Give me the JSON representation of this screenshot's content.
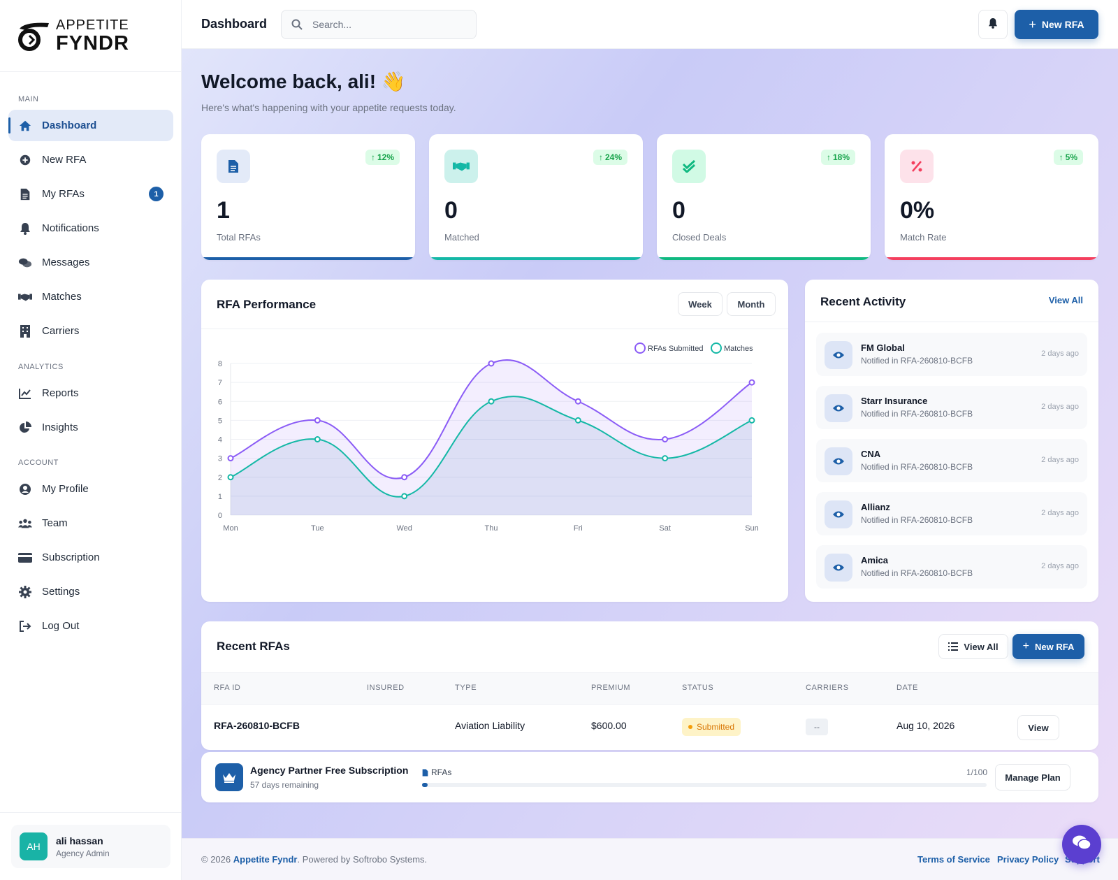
{
  "brand": {
    "line1": "APPETITE",
    "line2": "FYNDR"
  },
  "sidebar": {
    "sections": {
      "main": "MAIN",
      "analytics": "ANALYTICS",
      "account": "ACCOUNT"
    },
    "items": [
      {
        "label": "Dashboard",
        "icon": "home-icon"
      },
      {
        "label": "New RFA",
        "icon": "plus-circle-icon"
      },
      {
        "label": "My RFAs",
        "icon": "file-icon",
        "badge": "1"
      },
      {
        "label": "Notifications",
        "icon": "bell-icon"
      },
      {
        "label": "Messages",
        "icon": "comments-icon"
      },
      {
        "label": "Matches",
        "icon": "handshake-icon"
      },
      {
        "label": "Carriers",
        "icon": "building-icon"
      },
      {
        "label": "Reports",
        "icon": "line-chart-icon"
      },
      {
        "label": "Insights",
        "icon": "pie-chart-icon"
      },
      {
        "label": "My Profile",
        "icon": "user-circle-icon"
      },
      {
        "label": "Team",
        "icon": "users-icon"
      },
      {
        "label": "Subscription",
        "icon": "credit-card-icon"
      },
      {
        "label": "Settings",
        "icon": "gear-icon"
      },
      {
        "label": "Log Out",
        "icon": "logout-icon"
      }
    ],
    "user": {
      "initials": "AH",
      "name": "ali hassan",
      "role": "Agency Admin"
    }
  },
  "topbar": {
    "title": "Dashboard",
    "search_placeholder": "Search...",
    "new_rfa": "New RFA"
  },
  "welcome": {
    "title": "Welcome back, ali! 👋",
    "subtitle": "Here's what's happening with your appetite requests today."
  },
  "stats": [
    {
      "value": "1",
      "label": "Total RFAs",
      "trend": "12%",
      "color": "#1d5fa8"
    },
    {
      "value": "0",
      "label": "Matched",
      "trend": "24%",
      "color": "#14b8a6"
    },
    {
      "value": "0",
      "label": "Closed Deals",
      "trend": "18%",
      "color": "#10b981"
    },
    {
      "value": "0%",
      "label": "Match Rate",
      "trend": "5%",
      "color": "#f43f5e"
    }
  ],
  "performance": {
    "title": "RFA Performance",
    "week": "Week",
    "month": "Month"
  },
  "chart_data": {
    "type": "line",
    "categories": [
      "Mon",
      "Tue",
      "Wed",
      "Thu",
      "Fri",
      "Sat",
      "Sun"
    ],
    "series": [
      {
        "name": "RFAs Submitted",
        "values": [
          3,
          5,
          2,
          8,
          6,
          4,
          7
        ],
        "color": "#8b5cf6"
      },
      {
        "name": "Matches",
        "values": [
          2,
          4,
          1,
          6,
          5,
          3,
          5
        ],
        "color": "#14b8a6"
      }
    ],
    "ylim": [
      0,
      8
    ],
    "yticks": [
      "0",
      "1",
      "2",
      "3",
      "4",
      "5",
      "6",
      "7",
      "8"
    ],
    "legend": "top-right",
    "grid": true
  },
  "activity": {
    "title": "Recent Activity",
    "view_all": "View All",
    "items": [
      {
        "name": "FM Global",
        "sub": "Notified in RFA-260810-BCFB",
        "time": "2 days ago"
      },
      {
        "name": "Starr Insurance",
        "sub": "Notified in RFA-260810-BCFB",
        "time": "2 days ago"
      },
      {
        "name": "CNA",
        "sub": "Notified in RFA-260810-BCFB",
        "time": "2 days ago"
      },
      {
        "name": "Allianz",
        "sub": "Notified in RFA-260810-BCFB",
        "time": "2 days ago"
      },
      {
        "name": "Amica",
        "sub": "Notified in RFA-260810-BCFB",
        "time": "2 days ago"
      }
    ]
  },
  "recent_rfas": {
    "title": "Recent RFAs",
    "view_all": "View All",
    "new_rfa": "New RFA",
    "columns": [
      "RFA ID",
      "INSURED",
      "TYPE",
      "PREMIUM",
      "STATUS",
      "CARRIERS",
      "DATE"
    ],
    "rows": [
      {
        "id": "RFA-260810-BCFB",
        "insured": "",
        "type": "Aviation Liability",
        "premium": "$600.00",
        "status": "Submitted",
        "carriers": "--",
        "date": "Aug 10, 2026",
        "action": "View"
      }
    ]
  },
  "subscription": {
    "plan": "Agency Partner Free Subscription",
    "remaining": "57 days remaining",
    "usage_label": "RFAs",
    "usage_text": "1/100",
    "usage_fraction": 0.01,
    "manage": "Manage Plan"
  },
  "footer": {
    "prefix": "© 2026 ",
    "brand": "Appetite Fyndr",
    "suffix": ". Powered by Softrobo Systems.",
    "terms": "Terms of Service",
    "privacy": "Privacy Policy",
    "support": "Support"
  }
}
